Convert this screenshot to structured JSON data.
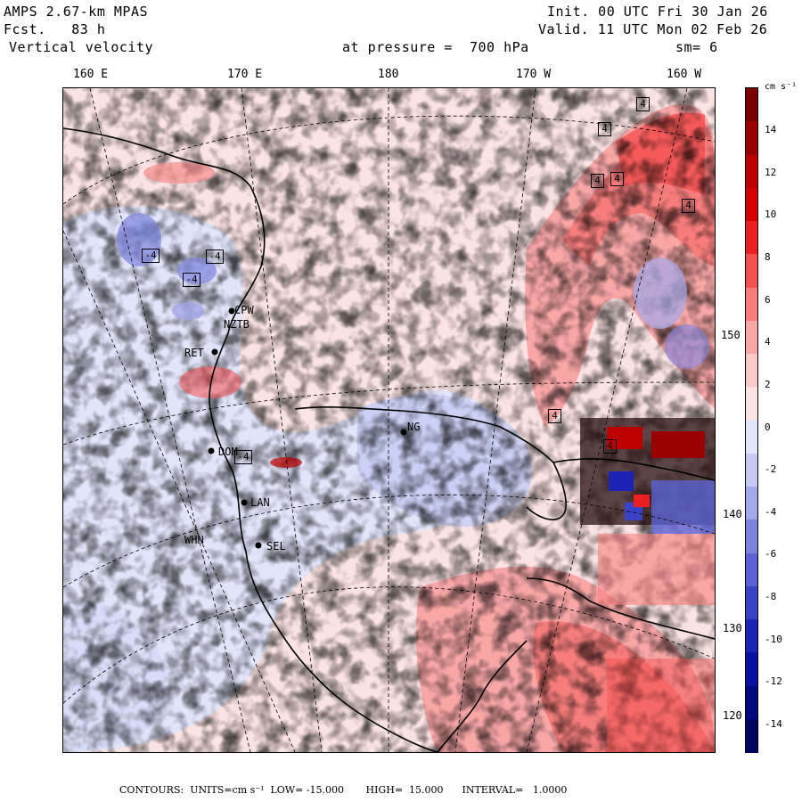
{
  "header": {
    "model": "AMPS 2.67-km MPAS",
    "forecast": "Fcst.   83 h",
    "field": "Vertical velocity",
    "init": "Init. 00 UTC Fri 30 Jan 26",
    "valid": "Valid. 11 UTC Mon 02 Feb 26",
    "level": "at pressure =  700 hPa",
    "smoothing": "sm= 6"
  },
  "longitude_labels": [
    "160 E",
    "170 E",
    "180",
    "170 W",
    "160 W"
  ],
  "latitude_labels": [
    "150 W",
    "140 W",
    "130 W",
    "120 W"
  ],
  "stations": [
    {
      "id": "NZCPW",
      "label": "CPW"
    },
    {
      "id": "NZTB",
      "label": "NZTB"
    },
    {
      "id": "RET",
      "label": "RET"
    },
    {
      "id": "DOM",
      "label": "DOM"
    },
    {
      "id": "LAN",
      "label": "LAN"
    },
    {
      "id": "WHN",
      "label": "WHN"
    },
    {
      "id": "SEL",
      "label": "SEL"
    },
    {
      "id": "NG",
      "label": "NG"
    }
  ],
  "contour_labels": [
    "4",
    "4",
    "4",
    "4",
    "4",
    "4",
    "-4",
    "-4",
    "-4",
    "-4",
    "4"
  ],
  "colorbar": {
    "units": "cm s⁻¹",
    "ticks": [
      "14",
      "12",
      "10",
      "8",
      "6",
      "4",
      "2",
      "0",
      "-2",
      "-4",
      "-6",
      "-8",
      "-10",
      "-12",
      "-14"
    ],
    "colors": [
      "#7a0000",
      "#9a0000",
      "#bc0000",
      "#d60000",
      "#ec2020",
      "#f55050",
      "#f77d7d",
      "#f8a6a6",
      "#fac8c8",
      "#fbe3e3",
      "#e2e4fa",
      "#c6caf3",
      "#a2a8ea",
      "#7c83de",
      "#5a62d2",
      "#3a42c8",
      "#1c24b8",
      "#0810a0",
      "#00087e",
      "#000560"
    ]
  },
  "footer": {
    "text": "CONTOURS:  UNITS=cm s⁻¹  LOW= -15.000       HIGH=  15.000      INTERVAL=   1.0000"
  }
}
